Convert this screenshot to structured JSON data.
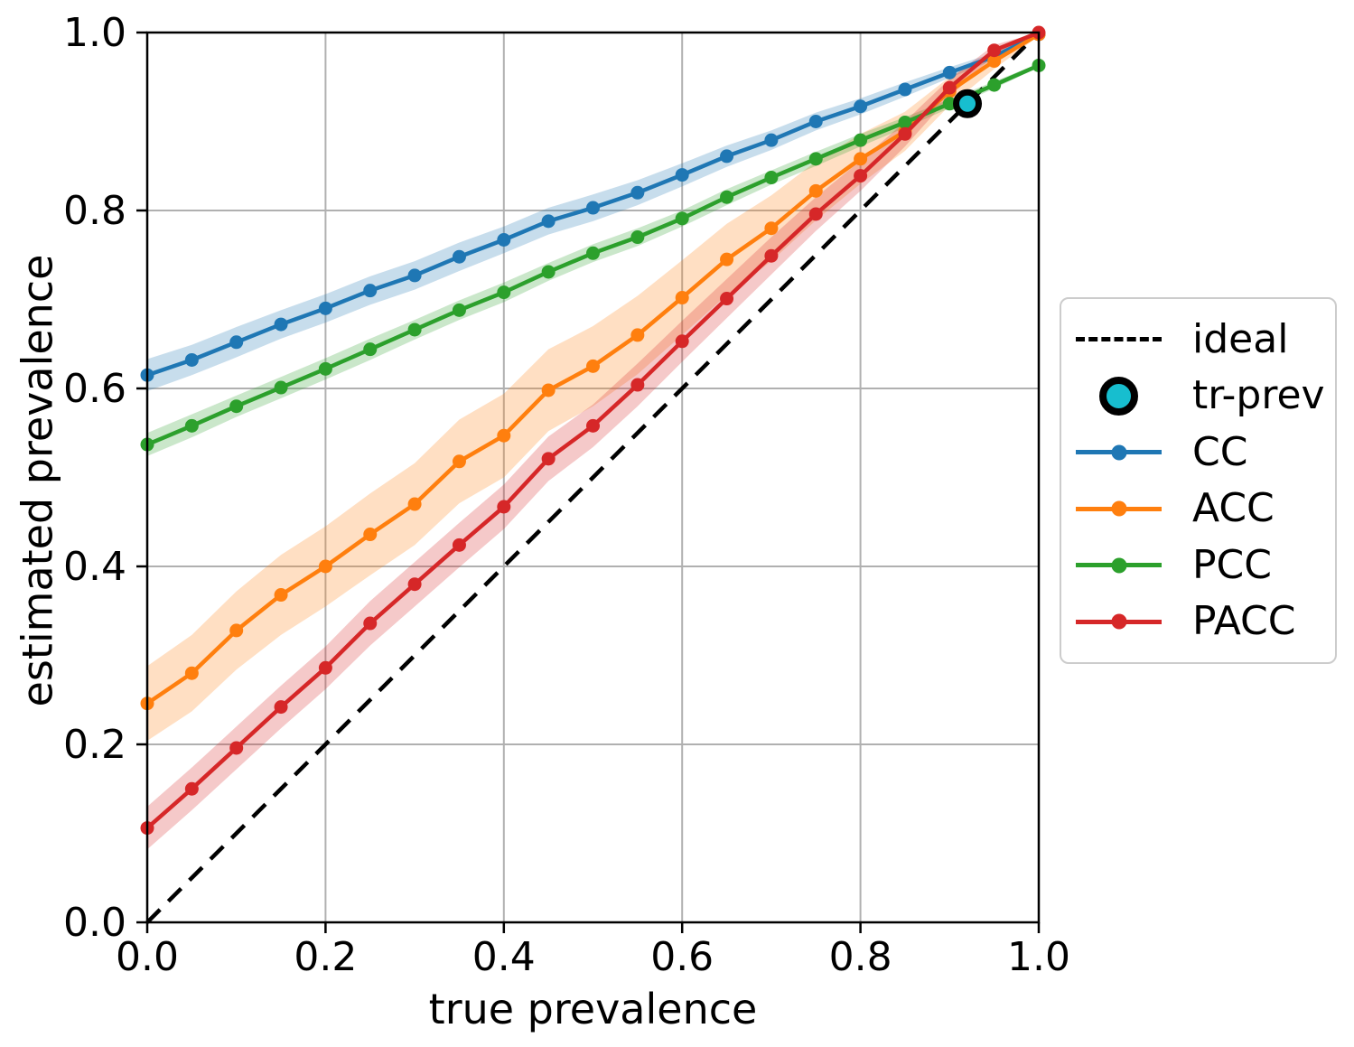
{
  "figure": {
    "xlabel": "true prevalence",
    "ylabel": "estimated prevalence"
  },
  "legend": {
    "position": "right-outside",
    "items": [
      {
        "label": "ideal",
        "type": "dashed-line",
        "color": "#000000"
      },
      {
        "label": "tr-prev",
        "type": "circle",
        "color": "#17becf"
      },
      {
        "label": "CC",
        "type": "line-marker",
        "color": "#1f77b4"
      },
      {
        "label": "ACC",
        "type": "line-marker",
        "color": "#ff7f0e"
      },
      {
        "label": "PCC",
        "type": "line-marker",
        "color": "#2ca02c"
      },
      {
        "label": "PACC",
        "type": "line-marker",
        "color": "#d62728"
      }
    ]
  },
  "colors": {
    "background": "#ffffff",
    "grid": "#b0b0b0",
    "spine": "#000000",
    "band_opacity": 0.25
  },
  "chart_data": {
    "type": "line",
    "title": "",
    "xlabel": "true prevalence",
    "ylabel": "estimated prevalence",
    "xlim": [
      0.0,
      1.0
    ],
    "ylim": [
      0.0,
      1.0
    ],
    "xticks": [
      0.0,
      0.2,
      0.4,
      0.6,
      0.8,
      1.0
    ],
    "yticks": [
      0.0,
      0.2,
      0.4,
      0.6,
      0.8,
      1.0
    ],
    "tick_format": "0.1f",
    "grid": true,
    "x": [
      0.0,
      0.05,
      0.1,
      0.15,
      0.2,
      0.25,
      0.3,
      0.35,
      0.4,
      0.45,
      0.5,
      0.55,
      0.6,
      0.65,
      0.7,
      0.75,
      0.8,
      0.85,
      0.9,
      0.95,
      1.0
    ],
    "series": [
      {
        "name": "CC",
        "color": "#1f77b4",
        "values": [
          0.615,
          0.632,
          0.652,
          0.672,
          0.69,
          0.71,
          0.727,
          0.748,
          0.767,
          0.788,
          0.803,
          0.82,
          0.84,
          0.861,
          0.879,
          0.9,
          0.917,
          0.936,
          0.955,
          0.973,
          0.998
        ],
        "band_halfwidth": [
          0.018,
          0.017,
          0.017,
          0.016,
          0.016,
          0.016,
          0.016,
          0.016,
          0.015,
          0.015,
          0.015,
          0.014,
          0.013,
          0.012,
          0.011,
          0.01,
          0.009,
          0.008,
          0.006,
          0.004,
          0.001
        ]
      },
      {
        "name": "ACC",
        "color": "#ff7f0e",
        "values": [
          0.246,
          0.28,
          0.328,
          0.368,
          0.4,
          0.436,
          0.47,
          0.518,
          0.547,
          0.598,
          0.625,
          0.66,
          0.702,
          0.745,
          0.78,
          0.822,
          0.858,
          0.889,
          0.934,
          0.968,
          0.998
        ],
        "band_halfwidth": [
          0.042,
          0.043,
          0.044,
          0.045,
          0.045,
          0.046,
          0.046,
          0.047,
          0.047,
          0.046,
          0.045,
          0.044,
          0.042,
          0.04,
          0.037,
          0.033,
          0.028,
          0.022,
          0.016,
          0.009,
          0.002
        ]
      },
      {
        "name": "PCC",
        "color": "#2ca02c",
        "values": [
          0.537,
          0.558,
          0.58,
          0.601,
          0.622,
          0.644,
          0.666,
          0.688,
          0.708,
          0.731,
          0.752,
          0.77,
          0.791,
          0.815,
          0.837,
          0.858,
          0.879,
          0.899,
          0.92,
          0.941,
          0.963
        ],
        "band_halfwidth": [
          0.013,
          0.013,
          0.012,
          0.012,
          0.012,
          0.012,
          0.011,
          0.011,
          0.011,
          0.01,
          0.01,
          0.01,
          0.009,
          0.009,
          0.008,
          0.008,
          0.007,
          0.006,
          0.005,
          0.004,
          0.002
        ]
      },
      {
        "name": "PACC",
        "color": "#d62728",
        "values": [
          0.106,
          0.15,
          0.196,
          0.242,
          0.286,
          0.336,
          0.38,
          0.424,
          0.467,
          0.521,
          0.558,
          0.604,
          0.653,
          0.701,
          0.749,
          0.796,
          0.839,
          0.886,
          0.938,
          0.98,
          1.0
        ],
        "band_halfwidth": [
          0.024,
          0.024,
          0.024,
          0.024,
          0.024,
          0.025,
          0.025,
          0.025,
          0.025,
          0.025,
          0.024,
          0.024,
          0.023,
          0.022,
          0.021,
          0.019,
          0.017,
          0.014,
          0.01,
          0.006,
          0.002
        ]
      }
    ],
    "ideal_line": {
      "label": "ideal",
      "from": [
        0.0,
        0.0
      ],
      "to": [
        1.0,
        1.0
      ],
      "style": "dashed",
      "color": "#000000"
    },
    "tr_prev_point": {
      "label": "tr-prev",
      "x": 0.92,
      "y": 0.92,
      "color": "#17becf"
    },
    "legend_position": "center right outside axes"
  }
}
